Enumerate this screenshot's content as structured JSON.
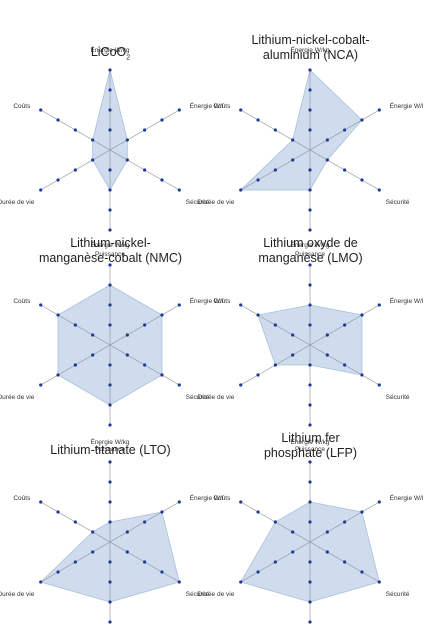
{
  "colors": {
    "fill": "#c5d6ea",
    "outline": "#a9c0dc",
    "point": "#1f3a93",
    "axis": "#8a8f99"
  },
  "axes": [
    "Énergie W/kg",
    "Énergie W/l",
    "Sécurité",
    "Puissance",
    "Durée de vie",
    "Coûts"
  ],
  "chart_data": [
    {
      "type": "radar",
      "title": "LiCoO",
      "title_sub": "2",
      "axes": [
        "Énergie W/kg",
        "Énergie W/l",
        "Sécurité",
        "Puissance",
        "Durée de vie",
        "Coûts"
      ],
      "levels": 4,
      "values": [
        4,
        1,
        1,
        2,
        1,
        1
      ]
    },
    {
      "type": "radar",
      "title": "Lithium-nickel-cobalt-",
      "title2": "aluminium (NCA)",
      "axes": [
        "Énergie W/kg",
        "Énergie W/l",
        "Sécurité",
        "Puissance",
        "Durée de vie",
        "Coûts"
      ],
      "levels": 4,
      "values": [
        4,
        3,
        1,
        2,
        4,
        1
      ]
    },
    {
      "type": "radar",
      "title": "Lithium-nickel-",
      "title2": "manganèse-cobalt (NMC)",
      "axes": [
        "Énergie W/kg",
        "Énergie W/l",
        "Sécurité",
        "Puissance",
        "Durée de vie",
        "Coûts"
      ],
      "levels": 4,
      "values": [
        3,
        3,
        3,
        3,
        3,
        3
      ]
    },
    {
      "type": "radar",
      "title": "Lithium oxyde de",
      "title2": "manganèse (LMO)",
      "axes": [
        "Énergie W/kg",
        "Énergie W/l",
        "Sécurité",
        "Puissance",
        "Durée de vie",
        "Coûts"
      ],
      "levels": 4,
      "values": [
        2,
        3,
        3,
        1,
        2,
        3
      ]
    },
    {
      "type": "radar",
      "title": "Lithium-titanate (LTO)",
      "title2": "",
      "axes": [
        "Énergie W/kg",
        "Énergie W/l",
        "Sécurité",
        "Puissance",
        "Durée de vie",
        "Coûts"
      ],
      "levels": 4,
      "values": [
        1,
        3,
        4,
        3,
        4,
        1
      ]
    },
    {
      "type": "radar",
      "title": "Lithium fer",
      "title2": "phosphate (LFP)",
      "axes": [
        "Énergie W/kg",
        "Énergie W/l",
        "Sécurité",
        "Puissance",
        "Durée de vie",
        "Coûts"
      ],
      "levels": 4,
      "values": [
        2,
        3,
        4,
        3,
        4,
        2
      ]
    }
  ]
}
